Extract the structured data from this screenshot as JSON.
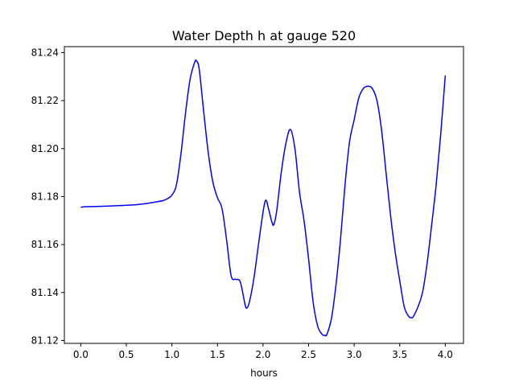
{
  "chart_data": {
    "type": "line",
    "title": "Water Depth h at gauge 520",
    "xlabel": "hours",
    "ylabel": "",
    "xlim": [
      -0.18,
      4.2
    ],
    "ylim": [
      81.1188,
      81.2425
    ],
    "xticks": [
      0.0,
      0.5,
      1.0,
      1.5,
      2.0,
      2.5,
      3.0,
      3.5,
      4.0
    ],
    "xtick_labels": [
      "0.0",
      "0.5",
      "1.0",
      "1.5",
      "2.0",
      "2.5",
      "3.0",
      "3.5",
      "4.0"
    ],
    "yticks": [
      81.12,
      81.14,
      81.16,
      81.18,
      81.2,
      81.22,
      81.24
    ],
    "ytick_labels": [
      "81.12",
      "81.14",
      "81.16",
      "81.18",
      "81.20",
      "81.22",
      "81.24"
    ],
    "grid": false,
    "legend": null,
    "series": [
      {
        "color": "#0000ff",
        "x": [
          0.0,
          0.05,
          0.2,
          0.4,
          0.6,
          0.7,
          0.8,
          0.9,
          0.95,
          1.0,
          1.05,
          1.1,
          1.15,
          1.2,
          1.25,
          1.27,
          1.3,
          1.35,
          1.4,
          1.45,
          1.5,
          1.55,
          1.6,
          1.65,
          1.7,
          1.75,
          1.8,
          1.82,
          1.85,
          1.9,
          1.95,
          2.0,
          2.03,
          2.06,
          2.1,
          2.12,
          2.15,
          2.2,
          2.25,
          2.3,
          2.35,
          2.4,
          2.45,
          2.5,
          2.55,
          2.6,
          2.65,
          2.68,
          2.7,
          2.75,
          2.8,
          2.85,
          2.9,
          2.95,
          3.0,
          3.05,
          3.1,
          3.15,
          3.2,
          3.25,
          3.3,
          3.35,
          3.4,
          3.45,
          3.5,
          3.55,
          3.6,
          3.63,
          3.65,
          3.7,
          3.75,
          3.8,
          3.85,
          3.9,
          3.95,
          4.0
        ],
        "y": [
          81.1755,
          81.1758,
          81.1759,
          81.1762,
          81.1766,
          81.177,
          81.1776,
          81.1783,
          81.1791,
          81.1806,
          81.185,
          81.198,
          81.215,
          81.229,
          81.236,
          81.2365,
          81.233,
          81.215,
          81.198,
          81.186,
          81.1795,
          81.175,
          81.162,
          81.147,
          81.1455,
          81.1445,
          81.1355,
          81.1335,
          81.136,
          81.146,
          81.16,
          81.1735,
          81.1785,
          81.175,
          81.169,
          81.1685,
          81.174,
          81.19,
          81.202,
          81.208,
          81.2,
          81.182,
          81.17,
          81.154,
          81.136,
          81.126,
          81.1225,
          81.1222,
          81.1225,
          81.129,
          81.143,
          81.162,
          81.185,
          81.203,
          81.212,
          81.221,
          81.225,
          81.226,
          81.225,
          81.22,
          81.208,
          81.19,
          81.172,
          81.157,
          81.145,
          81.134,
          81.13,
          81.1295,
          81.13,
          81.134,
          81.14,
          81.152,
          81.168,
          81.185,
          81.206,
          81.2305
        ]
      }
    ]
  }
}
